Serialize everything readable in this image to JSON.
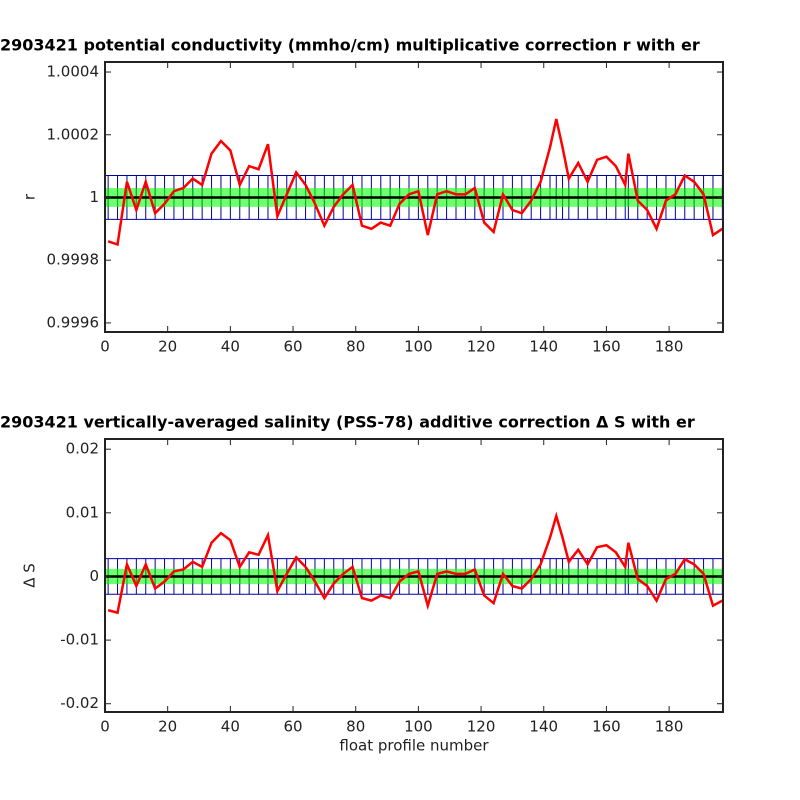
{
  "chart_data": [
    {
      "type": "line",
      "title": "2903421 potential conductivity (mmho/cm) multiplicative correction r with er",
      "y_label": "r",
      "x": [
        1,
        4,
        7,
        10,
        13,
        16,
        19,
        22,
        25,
        28,
        31,
        34,
        37,
        40,
        43,
        46,
        49,
        52,
        55,
        58,
        61,
        64,
        67,
        70,
        73,
        76,
        79,
        82,
        85,
        88,
        91,
        94,
        97,
        100,
        103,
        106,
        109,
        112,
        115,
        118,
        121,
        124,
        127,
        130,
        133,
        136,
        139,
        142,
        144,
        146,
        148,
        151,
        154,
        157,
        160,
        163,
        166,
        167,
        170,
        173,
        176,
        179,
        182,
        185,
        188,
        191,
        194,
        197
      ],
      "series": [
        {
          "color": "#ff0000",
          "values": [
            0.99986,
            0.99985,
            1.00005,
            0.99996,
            1.00005,
            0.99995,
            0.99998,
            1.00002,
            1.00003,
            1.00006,
            1.00004,
            1.00014,
            1.00018,
            1.00015,
            1.00004,
            1.0001,
            1.00009,
            1.00017,
            0.99994,
            1.00001,
            1.00008,
            1.00004,
            0.99998,
            0.99991,
            0.99997,
            1.00001,
            1.00004,
            0.99991,
            0.9999,
            0.99992,
            0.99991,
            0.99998,
            1.00001,
            1.00002,
            0.99988,
            1.00001,
            1.00002,
            1.00001,
            1.00001,
            1.00003,
            0.99992,
            0.99989,
            1.00001,
            0.99996,
            0.99995,
            0.99999,
            1.00005,
            1.00016,
            1.00025,
            1.00016,
            1.00006,
            1.00011,
            1.00005,
            1.00012,
            1.00013,
            1.0001,
            1.00004,
            1.00014,
            0.99999,
            0.99996,
            0.9999,
            0.99999,
            1.00001,
            1.00007,
            1.00005,
            1.00001,
            0.99988,
            0.9999
          ]
        }
      ],
      "fit": {
        "value": 1,
        "color": "#000000"
      },
      "outer_error": {
        "value": 7e-05,
        "color": "#0000a0"
      },
      "inner_error": {
        "value": 3e-05,
        "color": "#33ff33"
      },
      "xlim": [
        0,
        197.2
      ],
      "xticks": [
        0,
        20,
        40,
        60,
        80,
        100,
        120,
        140,
        160,
        180
      ],
      "ylim": [
        0.999571,
        1.000432
      ],
      "yticks": [
        0.9996,
        0.9998,
        1,
        1.0002,
        1.0004
      ]
    },
    {
      "type": "line",
      "title": "2903421 vertically-averaged salinity (PSS-78) additive correction Δ S with er",
      "y_label": "Δ S",
      "x_label": "float profile number",
      "x": [
        1,
        4,
        7,
        10,
        13,
        16,
        19,
        22,
        25,
        28,
        31,
        34,
        37,
        40,
        43,
        46,
        49,
        52,
        55,
        58,
        61,
        64,
        67,
        70,
        73,
        76,
        79,
        82,
        85,
        88,
        91,
        94,
        97,
        100,
        103,
        106,
        109,
        112,
        115,
        118,
        121,
        124,
        127,
        130,
        133,
        136,
        139,
        142,
        144,
        146,
        148,
        151,
        154,
        157,
        160,
        163,
        166,
        167,
        170,
        173,
        176,
        179,
        182,
        185,
        188,
        191,
        194,
        197
      ],
      "series": [
        {
          "color": "#ff0000",
          "values": [
            -0.0053,
            -0.0057,
            0.0019,
            -0.0015,
            0.0019,
            -0.0019,
            -0.0008,
            0.0008,
            0.0011,
            0.0023,
            0.0015,
            0.0053,
            0.0068,
            0.0057,
            0.0015,
            0.0038,
            0.0034,
            0.0065,
            -0.0023,
            0.0004,
            0.003,
            0.0015,
            -0.0008,
            -0.0034,
            -0.0011,
            0.0004,
            0.0015,
            -0.0034,
            -0.0038,
            -0.003,
            -0.0034,
            -0.0008,
            0.0004,
            0.0008,
            -0.0046,
            0.0004,
            0.0008,
            0.0004,
            0.0004,
            0.0011,
            -0.003,
            -0.0042,
            0.0004,
            -0.0015,
            -0.0019,
            -0.0004,
            0.0019,
            0.0061,
            0.0095,
            0.0061,
            0.0023,
            0.0042,
            0.0019,
            0.0046,
            0.0049,
            0.0038,
            0.0015,
            0.0053,
            -0.0004,
            -0.0015,
            -0.0038,
            -0.0004,
            0.0004,
            0.0027,
            0.0019,
            0.0004,
            -0.0046,
            -0.0038
          ]
        }
      ],
      "fit": {
        "value": 0,
        "color": "#000000"
      },
      "outer_error": {
        "value": 0.0028,
        "color": "#0000a0"
      },
      "inner_error": {
        "value": 0.0012,
        "color": "#33ff33"
      },
      "xlim": [
        0,
        197.2
      ],
      "xticks": [
        0,
        20,
        40,
        60,
        80,
        100,
        120,
        140,
        160,
        180
      ],
      "ylim": [
        -0.0213,
        0.0216
      ],
      "yticks": [
        -0.02,
        -0.01,
        0,
        0.01,
        0.02
      ]
    }
  ]
}
